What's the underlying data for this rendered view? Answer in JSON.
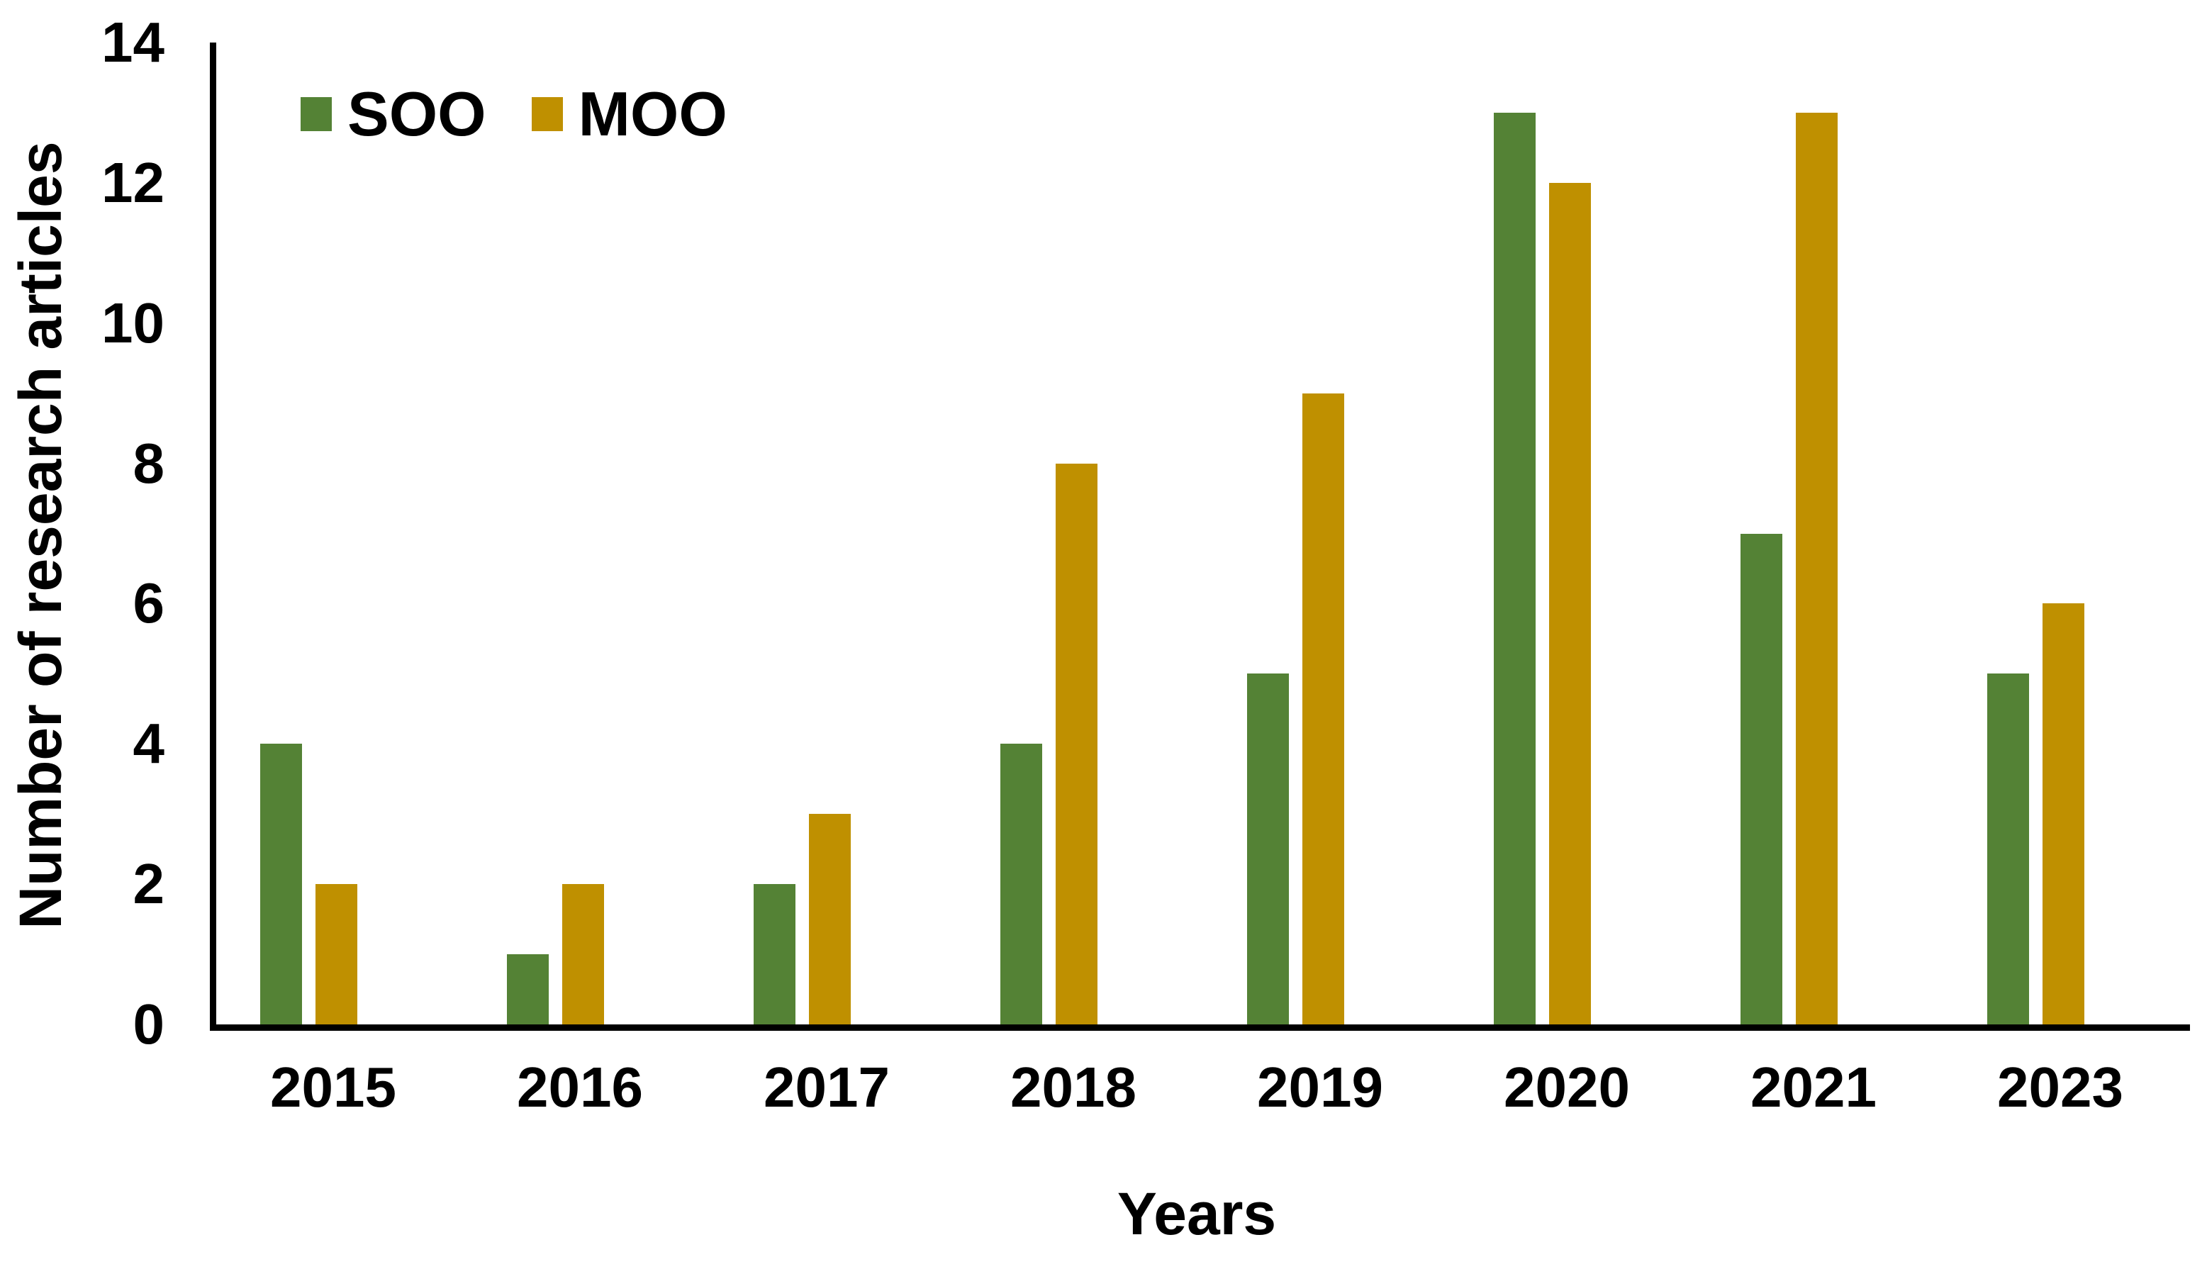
{
  "chart_data": {
    "type": "bar",
    "title": "",
    "xlabel": "Years",
    "ylabel": "Number of research articles",
    "categories": [
      "2015",
      "2016",
      "2017",
      "2018",
      "2019",
      "2020",
      "2021",
      "2023"
    ],
    "series": [
      {
        "name": "SOO",
        "color": "#548235",
        "values": [
          4,
          1,
          2,
          4,
          5,
          13,
          7,
          5
        ]
      },
      {
        "name": "MOO",
        "color": "#BF9000",
        "values": [
          2,
          2,
          3,
          8,
          9,
          12,
          13,
          6
        ]
      }
    ],
    "ylim": [
      0,
      14
    ],
    "yticks": [
      0,
      2,
      4,
      6,
      8,
      10,
      12,
      14
    ],
    "grid": false,
    "legend_position": "top-left-inside",
    "axis_color": "#000000",
    "background_color": "#ffffff"
  }
}
